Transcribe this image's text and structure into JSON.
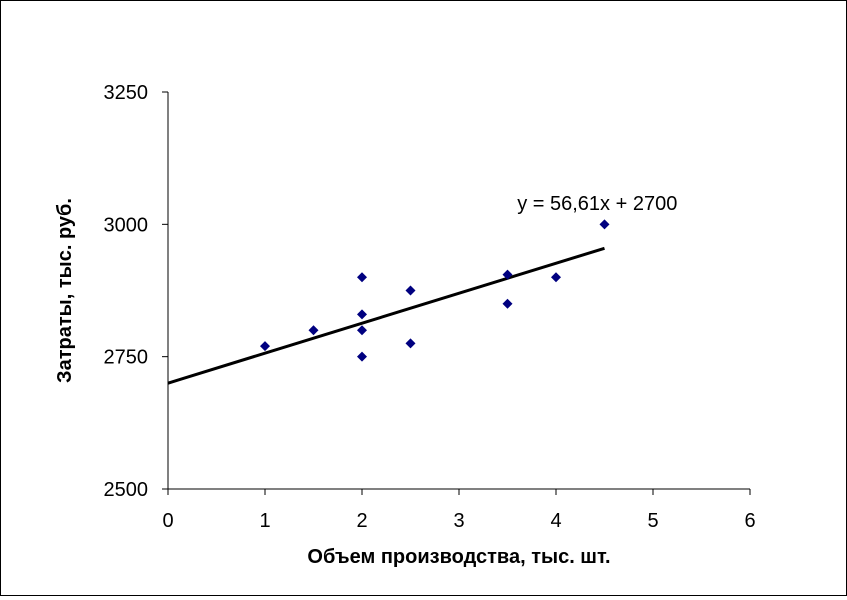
{
  "chart_data": {
    "type": "scatter",
    "xlabel": "Объем производства, тыс. шт.",
    "ylabel": "Затраты, тыс. руб.",
    "xlim": [
      0,
      6
    ],
    "ylim": [
      2500,
      3250
    ],
    "xticks": [
      0,
      1,
      2,
      3,
      4,
      5,
      6
    ],
    "yticks": [
      2500,
      2750,
      3000,
      3250
    ],
    "grid": false,
    "legend": "none",
    "marker_color": "#000080",
    "points": [
      {
        "x": 1,
        "y": 2770
      },
      {
        "x": 1.5,
        "y": 2800
      },
      {
        "x": 2,
        "y": 2900
      },
      {
        "x": 2,
        "y": 2830
      },
      {
        "x": 2,
        "y": 2800
      },
      {
        "x": 2,
        "y": 2750
      },
      {
        "x": 2.5,
        "y": 2875
      },
      {
        "x": 2.5,
        "y": 2775
      },
      {
        "x": 3.5,
        "y": 2905
      },
      {
        "x": 3.5,
        "y": 2850
      },
      {
        "x": 4,
        "y": 2900
      },
      {
        "x": 4.5,
        "y": 3000
      }
    ],
    "trendline": {
      "slope": 56.61,
      "intercept": 2700,
      "x_range": [
        0,
        4.5
      ],
      "color": "#000000",
      "equation": "y = 56,61x + 2700"
    }
  }
}
